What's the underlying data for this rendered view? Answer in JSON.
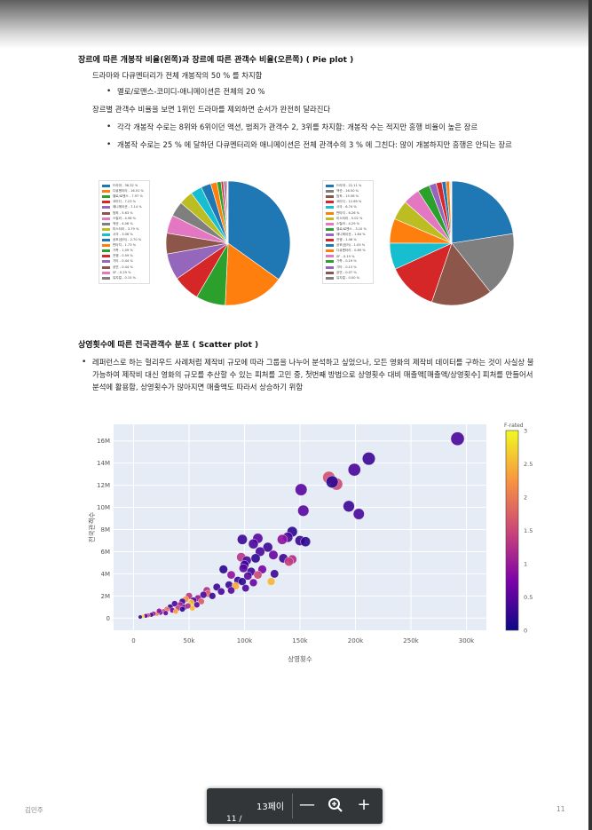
{
  "section1": {
    "title": "장르에 따른 개봉작 비율(왼쪽)과 장르에 따른 관객수 비율(오른쪽) ( Pie plot )",
    "line1": "드라마와 다큐멘터리가 전체 개봉작의 50 % 를 차지함",
    "bullet1": "멜로/로맨스-코미디-애니메이션은 전체의 20 %",
    "line2": "장르별 관객수 비율을 보면 1위인 드라마를 제외하면 순서가 완전히 달라진다",
    "bullet2": "각각 개봉작 수로는 8위와 6위이던 액션, 범죄가 관객수 2, 3위를 차지함: 개봉작 수는 적지만 흥행 비율이 높은 장르",
    "bullet3": "개봉작 수로는 25 % 에 달하던 다큐멘터리와 애니메이션은 전체 관객수의 3 % 에 그친다: 많이 개봉하지만 흥행은 안되는 장르"
  },
  "section2": {
    "title": "상영횟수에 따른 전국관객수 분포 ( Scatter plot )",
    "bullet1": "레퍼런스로 하는 헐리우드 사례처럼 제작비 규모에 따라 그룹을 나누어 분석하고 싶었으나, 모든 영화의 제작비 데이터를 구하는 것이 사실상 불가능하여 제작비 대신 영화의 규모를 추산할 수 있는 피처를 고민 중, 첫번째 방법으로 상영횟수 대비 매출액[매출액/상영횟수] 피처를 만들어서 분석에 활용함, 상영횟수가 많아지면 매출액도 따라서 상승하기 위함"
  },
  "footer": {
    "author": "김민주",
    "page_number": "11"
  },
  "viewer": {
    "page_label": "13페이",
    "page_sub": "11  /",
    "zoom_out": "—",
    "zoom_icon": "zoom-in-icon",
    "zoom_in": "+"
  },
  "chart_data": [
    {
      "type": "pie",
      "legend_placement": "left",
      "slices": [
        {
          "label": "드라마 - 36.32 %",
          "value": 36.32,
          "color": "#1f77b4"
        },
        {
          "label": "다큐멘터리 - 16.51 %",
          "value": 16.51,
          "color": "#ff7f0e"
        },
        {
          "label": "멜로/로맨스 - 7.97 %",
          "value": 7.97,
          "color": "#2ca02c"
        },
        {
          "label": "코미디 - 7.23 %",
          "value": 7.23,
          "color": "#d62728"
        },
        {
          "label": "애니메이션 - 7.14 %",
          "value": 7.14,
          "color": "#9467bd"
        },
        {
          "label": "범죄 - 5.63 %",
          "value": 5.63,
          "color": "#8c564b"
        },
        {
          "label": "스릴러 - 4.96 %",
          "value": 4.96,
          "color": "#e377c2"
        },
        {
          "label": "액션 - 4.06 %",
          "value": 4.06,
          "color": "#7f7f7f"
        },
        {
          "label": "미스터리 - 3.79 %",
          "value": 3.79,
          "color": "#bcbd22"
        },
        {
          "label": "사극 - 3.06 %",
          "value": 3.06,
          "color": "#17becf"
        },
        {
          "label": "공포(호러) - 2.70 %",
          "value": 2.7,
          "color": "#1f77b4"
        },
        {
          "label": "판타지 - 1.73 %",
          "value": 1.73,
          "color": "#ff7f0e"
        },
        {
          "label": "가족 - 1.09 %",
          "value": 1.09,
          "color": "#2ca02c"
        },
        {
          "label": "전쟁 - 0.59 %",
          "value": 0.59,
          "color": "#d62728"
        },
        {
          "label": "기타 - 0.44 %",
          "value": 0.44,
          "color": "#9467bd"
        },
        {
          "label": "공연 - 0.44 %",
          "value": 0.44,
          "color": "#8c564b"
        },
        {
          "label": "SF - 0.29 %",
          "value": 0.29,
          "color": "#e377c2"
        },
        {
          "label": "뮤지컬 - 0.15 %",
          "value": 0.15,
          "color": "#7f7f7f"
        }
      ]
    },
    {
      "type": "pie",
      "legend_placement": "left",
      "slices": [
        {
          "label": "드라마 - 22.11 %",
          "value": 22.11,
          "color": "#1f77b4"
        },
        {
          "label": "액션 - 16.50 %",
          "value": 16.5,
          "color": "#7f7f7f"
        },
        {
          "label": "범죄 - 15.58 %",
          "value": 15.58,
          "color": "#8c564b"
        },
        {
          "label": "코미디 - 12.69 %",
          "value": 12.69,
          "color": "#d62728"
        },
        {
          "label": "사극 - 6.74 %",
          "value": 6.74,
          "color": "#17becf"
        },
        {
          "label": "판타지 - 6.26 %",
          "value": 6.26,
          "color": "#ff7f0e"
        },
        {
          "label": "미스터리 - 5.02 %",
          "value": 5.02,
          "color": "#bcbd22"
        },
        {
          "label": "스릴러 - 4.29 %",
          "value": 4.29,
          "color": "#e377c2"
        },
        {
          "label": "멜로/로맨스 - 3.10 %",
          "value": 3.1,
          "color": "#2ca02c"
        },
        {
          "label": "애니메이션 - 1.84 %",
          "value": 1.84,
          "color": "#9467bd"
        },
        {
          "label": "전쟁 - 1.46 %",
          "value": 1.46,
          "color": "#d62728"
        },
        {
          "label": "공포(호러) - 1.05 %",
          "value": 1.05,
          "color": "#1f77b4"
        },
        {
          "label": "다큐멘터리 - 0.89 %",
          "value": 0.89,
          "color": "#ff7f0e"
        },
        {
          "label": "SF - 0.19 %",
          "value": 0.19,
          "color": "#e377c2"
        },
        {
          "label": "가족 - 0.19 %",
          "value": 0.19,
          "color": "#2ca02c"
        },
        {
          "label": "기타 - 0.13 %",
          "value": 0.13,
          "color": "#9467bd"
        },
        {
          "label": "공연 - 0.07 %",
          "value": 0.07,
          "color": "#8c564b"
        },
        {
          "label": "뮤지컬 - 0.00 %",
          "value": 0.0,
          "color": "#7f7f7f"
        }
      ]
    },
    {
      "type": "scatter",
      "xlabel": "상영횟수",
      "ylabel": "전국관객수",
      "colorbar_title": "F-rated",
      "colorbar_ticks": [
        "0",
        "0.5",
        "1",
        "1.5",
        "2",
        "2.5",
        "3"
      ],
      "xlim": [
        -18000,
        318000
      ],
      "ylim": [
        -1100000,
        17500000
      ],
      "x_ticks": [
        {
          "v": 0,
          "t": "0"
        },
        {
          "v": 50000,
          "t": "50k"
        },
        {
          "v": 100000,
          "t": "100k"
        },
        {
          "v": 150000,
          "t": "150k"
        },
        {
          "v": 200000,
          "t": "200k"
        },
        {
          "v": 250000,
          "t": "250k"
        },
        {
          "v": 300000,
          "t": "300k"
        }
      ],
      "y_ticks": [
        {
          "v": 0,
          "t": "0"
        },
        {
          "v": 2000000,
          "t": "2M"
        },
        {
          "v": 4000000,
          "t": "4M"
        },
        {
          "v": 6000000,
          "t": "6M"
        },
        {
          "v": 8000000,
          "t": "8M"
        },
        {
          "v": 10000000,
          "t": "10M"
        },
        {
          "v": 12000000,
          "t": "12M"
        },
        {
          "v": 14000000,
          "t": "14M"
        },
        {
          "v": 16000000,
          "t": "16M"
        }
      ],
      "grid": true,
      "points": [
        {
          "x": 292000,
          "y": 16200000,
          "c": 0.4
        },
        {
          "x": 212000,
          "y": 14400000,
          "c": 0.3
        },
        {
          "x": 199000,
          "y": 13400000,
          "c": 0.4
        },
        {
          "x": 176000,
          "y": 12700000,
          "c": 1.6
        },
        {
          "x": 183000,
          "y": 12100000,
          "c": 1.5
        },
        {
          "x": 179000,
          "y": 12300000,
          "c": 0.2
        },
        {
          "x": 151000,
          "y": 11600000,
          "c": 0.5
        },
        {
          "x": 194000,
          "y": 10100000,
          "c": 0.3
        },
        {
          "x": 203000,
          "y": 9400000,
          "c": 0.4
        },
        {
          "x": 153000,
          "y": 9700000,
          "c": 0.5
        },
        {
          "x": 143000,
          "y": 7800000,
          "c": 0.2
        },
        {
          "x": 139000,
          "y": 7300000,
          "c": 0.4
        },
        {
          "x": 134000,
          "y": 7100000,
          "c": 0.9
        },
        {
          "x": 150000,
          "y": 7000000,
          "c": 0.3
        },
        {
          "x": 155000,
          "y": 6900000,
          "c": 0.2
        },
        {
          "x": 98000,
          "y": 7100000,
          "c": 0.3
        },
        {
          "x": 112000,
          "y": 7200000,
          "c": 0.5
        },
        {
          "x": 108000,
          "y": 6700000,
          "c": 0.4
        },
        {
          "x": 121000,
          "y": 6400000,
          "c": 0.3
        },
        {
          "x": 114000,
          "y": 6000000,
          "c": 0.4
        },
        {
          "x": 126000,
          "y": 5700000,
          "c": 0.6
        },
        {
          "x": 97000,
          "y": 5500000,
          "c": 1.3
        },
        {
          "x": 110000,
          "y": 5400000,
          "c": 0.2
        },
        {
          "x": 102000,
          "y": 5200000,
          "c": 0.4
        },
        {
          "x": 135000,
          "y": 5400000,
          "c": 0.3
        },
        {
          "x": 143000,
          "y": 5300000,
          "c": 1.2
        },
        {
          "x": 140000,
          "y": 5100000,
          "c": 1.4
        },
        {
          "x": 100000,
          "y": 4800000,
          "c": 0.3
        },
        {
          "x": 99000,
          "y": 4500000,
          "c": 0.5
        },
        {
          "x": 116000,
          "y": 4400000,
          "c": 0.7
        },
        {
          "x": 106000,
          "y": 4200000,
          "c": 0.3
        },
        {
          "x": 81000,
          "y": 4400000,
          "c": 0.2
        },
        {
          "x": 88000,
          "y": 3900000,
          "c": 0.9
        },
        {
          "x": 112000,
          "y": 3900000,
          "c": 1.5
        },
        {
          "x": 127000,
          "y": 4000000,
          "c": 0.3
        },
        {
          "x": 103000,
          "y": 3800000,
          "c": 0.5
        },
        {
          "x": 94000,
          "y": 3400000,
          "c": 0.3
        },
        {
          "x": 98000,
          "y": 3300000,
          "c": 0.2
        },
        {
          "x": 108000,
          "y": 3200000,
          "c": 0.6
        },
        {
          "x": 124000,
          "y": 3300000,
          "c": 2.5
        },
        {
          "x": 86000,
          "y": 3000000,
          "c": 0.3
        },
        {
          "x": 92000,
          "y": 2900000,
          "c": 2.4
        },
        {
          "x": 101000,
          "y": 2700000,
          "c": 0.4
        },
        {
          "x": 75000,
          "y": 2800000,
          "c": 0.3
        },
        {
          "x": 66000,
          "y": 2500000,
          "c": 1.2
        },
        {
          "x": 79000,
          "y": 2400000,
          "c": 0.4
        },
        {
          "x": 88000,
          "y": 2500000,
          "c": 0.5
        },
        {
          "x": 67000,
          "y": 2200000,
          "c": 1.8
        },
        {
          "x": 71000,
          "y": 2000000,
          "c": 0.3
        },
        {
          "x": 63000,
          "y": 2100000,
          "c": 0.4
        },
        {
          "x": 58000,
          "y": 1800000,
          "c": 1.0
        },
        {
          "x": 50000,
          "y": 2000000,
          "c": 1.3
        },
        {
          "x": 47000,
          "y": 1700000,
          "c": 2.2
        },
        {
          "x": 54000,
          "y": 1600000,
          "c": 0.4
        },
        {
          "x": 61000,
          "y": 1500000,
          "c": 1.7
        },
        {
          "x": 44000,
          "y": 1500000,
          "c": 0.3
        },
        {
          "x": 52000,
          "y": 1400000,
          "c": 2.6
        },
        {
          "x": 57000,
          "y": 1200000,
          "c": 0.5
        },
        {
          "x": 42000,
          "y": 1200000,
          "c": 1.1
        },
        {
          "x": 37000,
          "y": 1300000,
          "c": 0.4
        },
        {
          "x": 46000,
          "y": 1000000,
          "c": 0.6
        },
        {
          "x": 53000,
          "y": 900000,
          "c": 2.5
        },
        {
          "x": 40000,
          "y": 900000,
          "c": 1.4
        },
        {
          "x": 33000,
          "y": 1000000,
          "c": 0.3
        },
        {
          "x": 30000,
          "y": 800000,
          "c": 1.9
        },
        {
          "x": 35000,
          "y": 700000,
          "c": 0.7
        },
        {
          "x": 27000,
          "y": 600000,
          "c": 1.5
        },
        {
          "x": 24000,
          "y": 500000,
          "c": 0.4
        },
        {
          "x": 21000,
          "y": 400000,
          "c": 2.1
        },
        {
          "x": 18000,
          "y": 400000,
          "c": 1.0
        },
        {
          "x": 16000,
          "y": 300000,
          "c": 0.3
        },
        {
          "x": 13000,
          "y": 250000,
          "c": 1.6
        },
        {
          "x": 11000,
          "y": 200000,
          "c": 0.5
        },
        {
          "x": 8000,
          "y": 150000,
          "c": 2.7
        },
        {
          "x": 6000,
          "y": 100000,
          "c": 0.3
        },
        {
          "x": 23000,
          "y": 650000,
          "c": 0.9
        },
        {
          "x": 29000,
          "y": 450000,
          "c": 0.6
        },
        {
          "x": 38000,
          "y": 600000,
          "c": 2.3
        },
        {
          "x": 44000,
          "y": 800000,
          "c": 0.2
        },
        {
          "x": 49000,
          "y": 1100000,
          "c": 1.2
        }
      ]
    }
  ]
}
